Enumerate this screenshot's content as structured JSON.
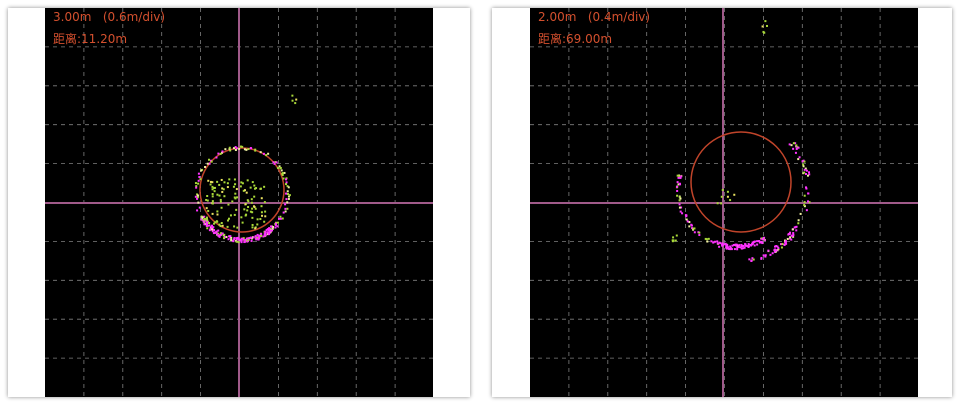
{
  "panels": [
    {
      "scale_label": "3.00m   (0.6m/div)",
      "distance_label": "距离:11.20m"
    },
    {
      "scale_label": "2.00m   (0.4m/div)",
      "distance_label": "距离:69.00m"
    }
  ],
  "colors": {
    "background": "#000000",
    "grid": "#808080",
    "crosshair": "#a05a8a",
    "ring": "#c0442a",
    "label": "#d4502e",
    "points_primary": "#ff33ff",
    "points_secondary": "#a8d838"
  }
}
